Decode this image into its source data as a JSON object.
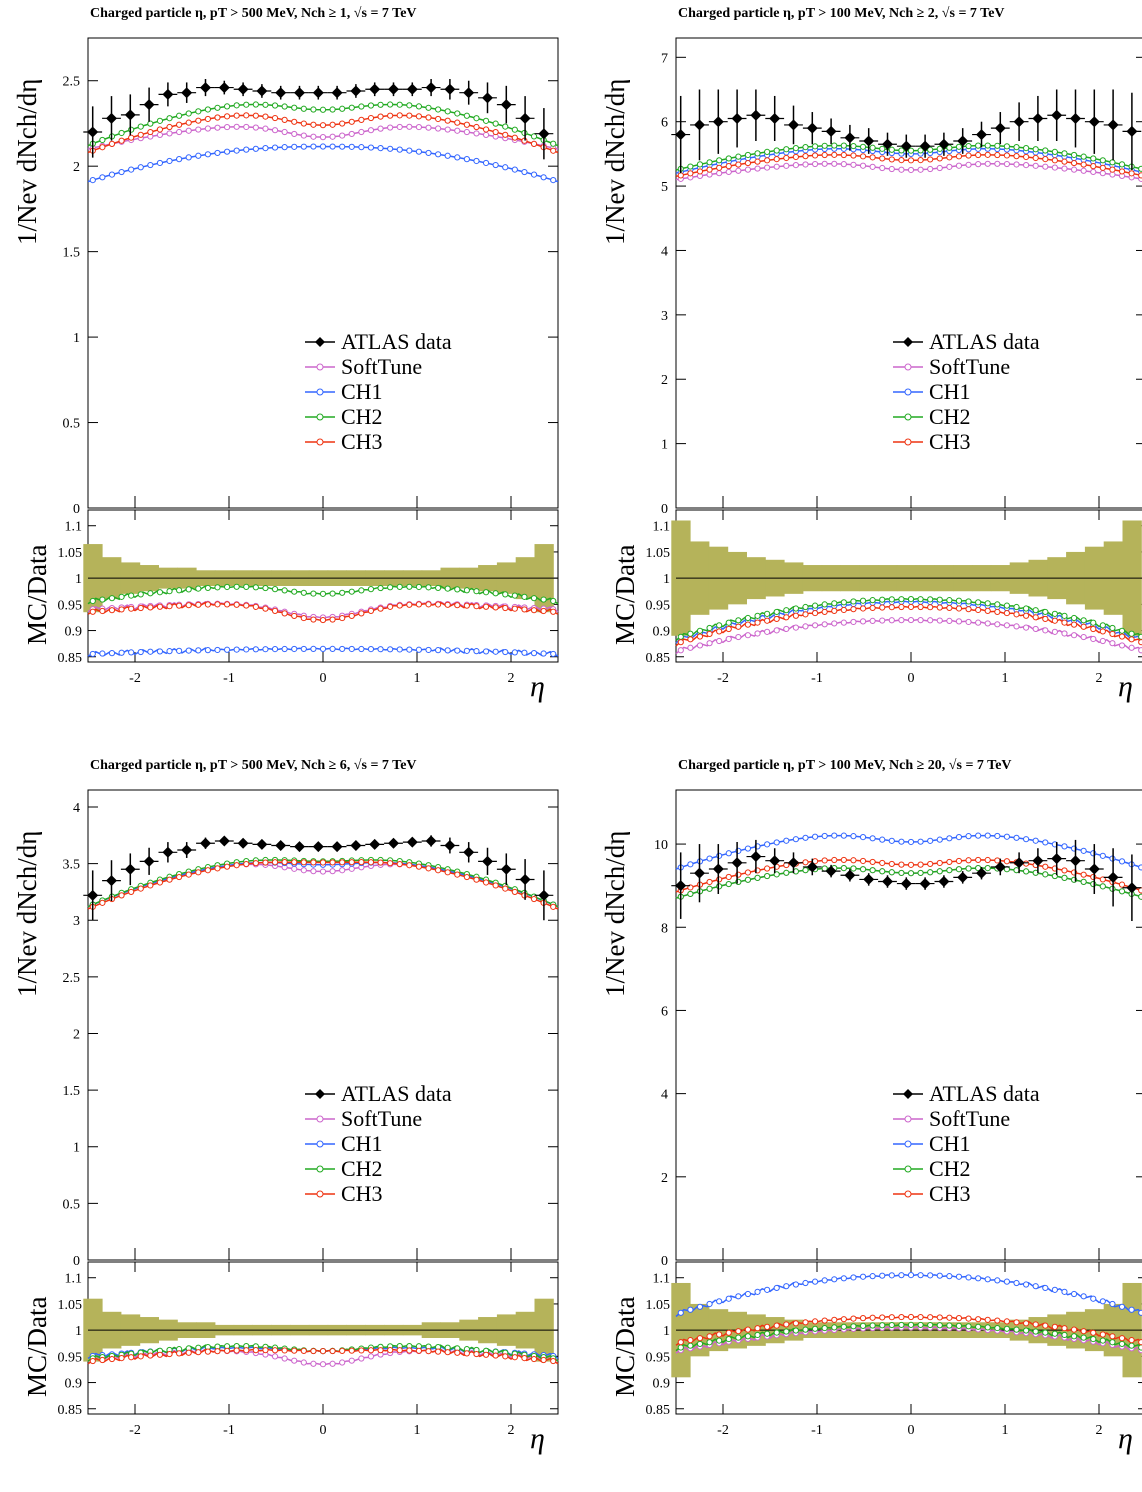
{
  "ylabel_main": "1/Nev dNch/dη",
  "ylabel_ratio": "MC/Data",
  "xlabel": "η",
  "legend": [
    {
      "key": "data",
      "label": "ATLAS data",
      "color": "#000000"
    },
    {
      "key": "soft",
      "label": "SoftTune",
      "color": "#cc66cc"
    },
    {
      "key": "ch1",
      "label": "CH1",
      "color": "#3366ff"
    },
    {
      "key": "ch2",
      "label": "CH2",
      "color": "#22aa22"
    },
    {
      "key": "ch3",
      "label": "CH3",
      "color": "#ee3311"
    }
  ],
  "band_color": "#b5b35a",
  "chart_data": [
    {
      "type": "line",
      "title": "Charged particle η, pT > 500 MeV, Nch ≥ 1, √s = 7 TeV",
      "xlim": [
        -2.5,
        2.5
      ],
      "ylim": [
        0,
        2.75
      ],
      "yticks": [
        {
          "v": 0,
          "l": "0"
        },
        {
          "v": 0.5,
          "l": "0.5"
        },
        {
          "v": 1,
          "l": "1"
        },
        {
          "v": 1.5,
          "l": "1.5"
        },
        {
          "v": 2,
          "l": "2"
        },
        {
          "v": 2.5,
          "l": "2.5"
        }
      ],
      "rlim": [
        0.84,
        1.13
      ],
      "rticks": [
        {
          "v": 0.85,
          "l": "0.85"
        },
        {
          "v": 0.9,
          "l": "0.9"
        },
        {
          "v": 0.95,
          "l": "0.95"
        },
        {
          "v": 1,
          "l": "1"
        },
        {
          "v": 1.05,
          "l": "1.05"
        },
        {
          "v": 1.1,
          "l": "1.1"
        }
      ],
      "xticks": [
        {
          "v": -2,
          "l": "-2"
        },
        {
          "v": -1,
          "l": "-1"
        },
        {
          "v": 0,
          "l": "0"
        },
        {
          "v": 1,
          "l": "1"
        },
        {
          "v": 2,
          "l": "2"
        }
      ],
      "data": {
        "x": [
          -2.45,
          -2.25,
          -2.05,
          -1.85,
          -1.65,
          -1.45,
          -1.25,
          -1.05,
          -0.85,
          -0.65,
          -0.45,
          -0.25,
          -0.05,
          0.15,
          0.35,
          0.55,
          0.75,
          0.95,
          1.15,
          1.35,
          1.55,
          1.75,
          1.95,
          2.15,
          2.35
        ],
        "y": [
          2.2,
          2.28,
          2.3,
          2.36,
          2.42,
          2.43,
          2.46,
          2.46,
          2.45,
          2.44,
          2.43,
          2.43,
          2.43,
          2.43,
          2.44,
          2.45,
          2.45,
          2.45,
          2.46,
          2.45,
          2.43,
          2.4,
          2.36,
          2.28,
          2.19
        ],
        "err": [
          0.15,
          0.13,
          0.12,
          0.1,
          0.07,
          0.06,
          0.05,
          0.04,
          0.04,
          0.04,
          0.04,
          0.04,
          0.04,
          0.04,
          0.04,
          0.04,
          0.04,
          0.04,
          0.05,
          0.06,
          0.07,
          0.09,
          0.11,
          0.13,
          0.15
        ]
      },
      "models": {
        "soft": {
          "edge": 2.1,
          "center": 2.26,
          "dip": 0.09
        },
        "ch1": {
          "edge": 1.91,
          "center": 2.12,
          "dip": 0.005
        },
        "ch2": {
          "edge": 2.12,
          "center": 2.4,
          "dip": 0.07
        },
        "ch3": {
          "edge": 2.08,
          "center": 2.34,
          "dip": 0.1
        }
      },
      "ratios": {
        "soft": {
          "edge": 0.94,
          "center": 0.955,
          "dip": 0.03
        },
        "ch1": {
          "edge": 0.855,
          "center": 0.865,
          "dip": 0.0
        },
        "ch2": {
          "edge": 0.955,
          "center": 0.99,
          "dip": 0.02
        },
        "ch3": {
          "edge": 0.935,
          "center": 0.955,
          "dip": 0.035
        }
      },
      "band": [
        0.065,
        0.04,
        0.03,
        0.025,
        0.02,
        0.02,
        0.015,
        0.015,
        0.015,
        0.015,
        0.015,
        0.015,
        0.015,
        0.015,
        0.015,
        0.015,
        0.015,
        0.015,
        0.015,
        0.02,
        0.02,
        0.025,
        0.03,
        0.04,
        0.065
      ]
    },
    {
      "type": "line",
      "title": "Charged particle η, pT > 100 MeV, Nch ≥ 2, √s = 7 TeV",
      "xlim": [
        -2.5,
        2.5
      ],
      "ylim": [
        0,
        7.3
      ],
      "yticks": [
        {
          "v": 0,
          "l": "0"
        },
        {
          "v": 1,
          "l": "1"
        },
        {
          "v": 2,
          "l": "2"
        },
        {
          "v": 3,
          "l": "3"
        },
        {
          "v": 4,
          "l": "4"
        },
        {
          "v": 5,
          "l": "5"
        },
        {
          "v": 6,
          "l": "6"
        },
        {
          "v": 7,
          "l": "7"
        }
      ],
      "rlim": [
        0.84,
        1.13
      ],
      "rticks": [
        {
          "v": 0.85,
          "l": "0.85"
        },
        {
          "v": 0.9,
          "l": "0.9"
        },
        {
          "v": 0.95,
          "l": "0.95"
        },
        {
          "v": 1,
          "l": "1"
        },
        {
          "v": 1.05,
          "l": "1.05"
        },
        {
          "v": 1.1,
          "l": "1.1"
        }
      ],
      "xticks": [
        {
          "v": -2,
          "l": "-2"
        },
        {
          "v": -1,
          "l": "-1"
        },
        {
          "v": 0,
          "l": "0"
        },
        {
          "v": 1,
          "l": "1"
        },
        {
          "v": 2,
          "l": "2"
        }
      ],
      "data": {
        "x": [
          -2.45,
          -2.25,
          -2.05,
          -1.85,
          -1.65,
          -1.45,
          -1.25,
          -1.05,
          -0.85,
          -0.65,
          -0.45,
          -0.25,
          -0.05,
          0.15,
          0.35,
          0.55,
          0.75,
          0.95,
          1.15,
          1.35,
          1.55,
          1.75,
          1.95,
          2.15,
          2.35
        ],
        "y": [
          5.8,
          5.95,
          6.0,
          6.05,
          6.1,
          6.05,
          5.95,
          5.9,
          5.85,
          5.75,
          5.7,
          5.65,
          5.62,
          5.62,
          5.65,
          5.7,
          5.8,
          5.9,
          6.0,
          6.05,
          6.1,
          6.05,
          6.0,
          5.95,
          5.85
        ],
        "err": [
          0.6,
          0.55,
          0.5,
          0.45,
          0.4,
          0.35,
          0.3,
          0.25,
          0.2,
          0.2,
          0.2,
          0.18,
          0.18,
          0.18,
          0.18,
          0.2,
          0.2,
          0.25,
          0.3,
          0.35,
          0.4,
          0.45,
          0.5,
          0.55,
          0.6
        ]
      },
      "models": {
        "soft": {
          "edge": 5.1,
          "center": 5.4,
          "dip": 0.15
        },
        "ch2": {
          "edge": 5.25,
          "center": 5.7,
          "dip": 0.15
        },
        "ch3": {
          "edge": 5.15,
          "center": 5.55,
          "dip": 0.15
        },
        "ch1": {
          "edge": 5.2,
          "center": 5.65,
          "dip": 0.15
        }
      },
      "ratios": {
        "soft": {
          "edge": 0.86,
          "center": 0.92,
          "dip": 0.0
        },
        "ch1": {
          "edge": 0.88,
          "center": 0.955,
          "dip": 0.0
        },
        "ch2": {
          "edge": 0.885,
          "center": 0.96,
          "dip": 0.0
        },
        "ch3": {
          "edge": 0.875,
          "center": 0.945,
          "dip": 0.0
        }
      },
      "band": [
        0.11,
        0.07,
        0.06,
        0.05,
        0.04,
        0.035,
        0.03,
        0.025,
        0.025,
        0.025,
        0.025,
        0.025,
        0.025,
        0.025,
        0.025,
        0.025,
        0.025,
        0.025,
        0.03,
        0.035,
        0.04,
        0.05,
        0.06,
        0.07,
        0.11
      ]
    },
    {
      "type": "line",
      "title": "Charged particle η, pT > 500 MeV, Nch ≥ 6, √s = 7 TeV",
      "xlim": [
        -2.5,
        2.5
      ],
      "ylim": [
        0,
        4.15
      ],
      "yticks": [
        {
          "v": 0,
          "l": "0"
        },
        {
          "v": 0.5,
          "l": "0.5"
        },
        {
          "v": 1,
          "l": "1"
        },
        {
          "v": 1.5,
          "l": "1.5"
        },
        {
          "v": 2,
          "l": "2"
        },
        {
          "v": 2.5,
          "l": "2.5"
        },
        {
          "v": 3,
          "l": "3"
        },
        {
          "v": 3.5,
          "l": "3.5"
        },
        {
          "v": 4,
          "l": "4"
        }
      ],
      "rlim": [
        0.84,
        1.13
      ],
      "rticks": [
        {
          "v": 0.85,
          "l": "0.85"
        },
        {
          "v": 0.9,
          "l": "0.9"
        },
        {
          "v": 0.95,
          "l": "0.95"
        },
        {
          "v": 1,
          "l": "1"
        },
        {
          "v": 1.05,
          "l": "1.05"
        },
        {
          "v": 1.1,
          "l": "1.1"
        }
      ],
      "xticks": [
        {
          "v": -2,
          "l": "-2"
        },
        {
          "v": -1,
          "l": "-1"
        },
        {
          "v": 0,
          "l": "0"
        },
        {
          "v": 1,
          "l": "1"
        },
        {
          "v": 2,
          "l": "2"
        }
      ],
      "data": {
        "x": [
          -2.45,
          -2.25,
          -2.05,
          -1.85,
          -1.65,
          -1.45,
          -1.25,
          -1.05,
          -0.85,
          -0.65,
          -0.45,
          -0.25,
          -0.05,
          0.15,
          0.35,
          0.55,
          0.75,
          0.95,
          1.15,
          1.35,
          1.55,
          1.75,
          1.95,
          2.15,
          2.35
        ],
        "y": [
          3.22,
          3.35,
          3.45,
          3.52,
          3.6,
          3.62,
          3.68,
          3.7,
          3.68,
          3.67,
          3.66,
          3.65,
          3.65,
          3.65,
          3.66,
          3.67,
          3.68,
          3.69,
          3.7,
          3.66,
          3.6,
          3.52,
          3.45,
          3.36,
          3.22
        ],
        "err": [
          0.22,
          0.18,
          0.14,
          0.12,
          0.09,
          0.07,
          0.05,
          0.04,
          0.04,
          0.04,
          0.04,
          0.04,
          0.04,
          0.04,
          0.04,
          0.04,
          0.04,
          0.04,
          0.05,
          0.07,
          0.09,
          0.12,
          0.14,
          0.18,
          0.22
        ]
      },
      "models": {
        "soft": {
          "edge": 3.12,
          "center": 3.56,
          "dip": 0.13
        },
        "ch1": {
          "edge": 3.12,
          "center": 3.56,
          "dip": 0.07
        },
        "ch2": {
          "edge": 3.12,
          "center": 3.58,
          "dip": 0.06
        },
        "ch3": {
          "edge": 3.1,
          "center": 3.55,
          "dip": 0.04
        }
      },
      "ratios": {
        "soft": {
          "edge": 0.945,
          "center": 0.965,
          "dip": 0.03
        },
        "ch1": {
          "edge": 0.95,
          "center": 0.97,
          "dip": 0.01
        },
        "ch2": {
          "edge": 0.945,
          "center": 0.975,
          "dip": 0.015
        },
        "ch3": {
          "edge": 0.94,
          "center": 0.965,
          "dip": 0.005
        }
      },
      "band": [
        0.06,
        0.035,
        0.03,
        0.025,
        0.02,
        0.015,
        0.015,
        0.01,
        0.01,
        0.01,
        0.01,
        0.01,
        0.01,
        0.01,
        0.01,
        0.01,
        0.01,
        0.01,
        0.015,
        0.015,
        0.02,
        0.025,
        0.03,
        0.035,
        0.06
      ]
    },
    {
      "type": "line",
      "title": "Charged particle η, pT > 100 MeV, Nch ≥ 20, √s = 7 TeV",
      "xlim": [
        -2.5,
        2.5
      ],
      "ylim": [
        0,
        11.3
      ],
      "yticks": [
        {
          "v": 0,
          "l": "0"
        },
        {
          "v": 2,
          "l": "2"
        },
        {
          "v": 4,
          "l": "4"
        },
        {
          "v": 6,
          "l": "6"
        },
        {
          "v": 8,
          "l": "8"
        },
        {
          "v": 10,
          "l": "10"
        }
      ],
      "rlim": [
        0.84,
        1.13
      ],
      "rticks": [
        {
          "v": 0.85,
          "l": "0.85"
        },
        {
          "v": 0.9,
          "l": "0.9"
        },
        {
          "v": 0.95,
          "l": "0.95"
        },
        {
          "v": 1,
          "l": "1"
        },
        {
          "v": 1.05,
          "l": "1.05"
        },
        {
          "v": 1.1,
          "l": "1.1"
        }
      ],
      "xticks": [
        {
          "v": -2,
          "l": "-2"
        },
        {
          "v": -1,
          "l": "-1"
        },
        {
          "v": 0,
          "l": "0"
        },
        {
          "v": 1,
          "l": "1"
        },
        {
          "v": 2,
          "l": "2"
        }
      ],
      "data": {
        "x": [
          -2.45,
          -2.25,
          -2.05,
          -1.85,
          -1.65,
          -1.45,
          -1.25,
          -1.05,
          -0.85,
          -0.65,
          -0.45,
          -0.25,
          -0.05,
          0.15,
          0.35,
          0.55,
          0.75,
          0.95,
          1.15,
          1.35,
          1.55,
          1.75,
          1.95,
          2.15,
          2.35
        ],
        "y": [
          9.0,
          9.3,
          9.4,
          9.55,
          9.7,
          9.6,
          9.55,
          9.45,
          9.35,
          9.25,
          9.15,
          9.1,
          9.05,
          9.05,
          9.1,
          9.2,
          9.3,
          9.45,
          9.55,
          9.6,
          9.65,
          9.6,
          9.4,
          9.2,
          8.95
        ],
        "err": [
          0.8,
          0.7,
          0.6,
          0.5,
          0.4,
          0.3,
          0.25,
          0.2,
          0.15,
          0.15,
          0.15,
          0.15,
          0.15,
          0.15,
          0.15,
          0.15,
          0.15,
          0.2,
          0.25,
          0.3,
          0.4,
          0.5,
          0.6,
          0.7,
          0.8
        ]
      },
      "models": {
        "soft": {
          "edge": 8.7,
          "center": 9.55,
          "dip": 0.25
        },
        "ch1": {
          "edge": 9.4,
          "center": 10.35,
          "dip": 0.3
        },
        "ch2": {
          "edge": 8.7,
          "center": 9.55,
          "dip": 0.25
        },
        "ch3": {
          "edge": 8.85,
          "center": 9.75,
          "dip": 0.25
        }
      },
      "ratios": {
        "soft": {
          "edge": 0.96,
          "center": 1.005,
          "dip": 0.0
        },
        "ch1": {
          "edge": 1.03,
          "center": 1.105,
          "dip": 0.0
        },
        "ch2": {
          "edge": 0.965,
          "center": 1.01,
          "dip": 0.0
        },
        "ch3": {
          "edge": 0.975,
          "center": 1.025,
          "dip": 0.0
        }
      },
      "band": [
        0.09,
        0.05,
        0.04,
        0.035,
        0.03,
        0.025,
        0.02,
        0.015,
        0.015,
        0.015,
        0.015,
        0.015,
        0.015,
        0.015,
        0.015,
        0.015,
        0.015,
        0.015,
        0.02,
        0.025,
        0.03,
        0.035,
        0.04,
        0.05,
        0.09
      ]
    }
  ]
}
